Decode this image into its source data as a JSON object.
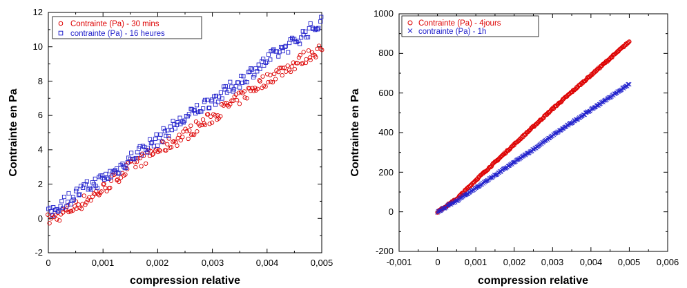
{
  "chart_data": [
    {
      "type": "scatter",
      "xlabel": "compression relative",
      "ylabel": "Contrainte en Pa",
      "xlim": [
        0,
        0.005
      ],
      "ylim": [
        -2,
        12
      ],
      "xticks": [
        "0",
        "0,001",
        "0,002",
        "0,003",
        "0,004",
        "0,005"
      ],
      "yticks": [
        "-2",
        "0",
        "2",
        "4",
        "6",
        "8",
        "10",
        "12"
      ],
      "legend_position": "top-left",
      "series": [
        {
          "name": "Contrainte (Pa) - 30 mins",
          "color": "#dd0000",
          "marker": "circle",
          "x": [
            0,
            0.00025,
            0.0005,
            0.00075,
            0.001,
            0.00125,
            0.0015,
            0.00175,
            0.002,
            0.00225,
            0.0025,
            0.00275,
            0.003,
            0.00325,
            0.0035,
            0.00375,
            0.004,
            0.00425,
            0.0045,
            0.00475,
            0.005
          ],
          "y": [
            -0.1,
            0.3,
            0.7,
            1.2,
            1.7,
            2.4,
            3.0,
            3.5,
            4.0,
            4.4,
            4.9,
            5.4,
            5.9,
            6.5,
            7.0,
            7.6,
            8.1,
            8.6,
            9.0,
            9.5,
            9.9
          ]
        },
        {
          "name": "contrainte  (Pa) - 16 heures",
          "color": "#2222cc",
          "marker": "square",
          "x": [
            0,
            0.00025,
            0.0005,
            0.00075,
            0.001,
            0.00125,
            0.0015,
            0.00175,
            0.002,
            0.00225,
            0.0025,
            0.00275,
            0.003,
            0.00325,
            0.0035,
            0.00375,
            0.004,
            0.00425,
            0.0045,
            0.00475,
            0.005
          ],
          "y": [
            0.2,
            0.9,
            1.4,
            1.9,
            2.3,
            2.8,
            3.5,
            4.1,
            4.6,
            5.3,
            5.8,
            6.4,
            6.9,
            7.4,
            8.0,
            8.6,
            9.2,
            9.8,
            10.3,
            10.9,
            11.4
          ]
        }
      ]
    },
    {
      "type": "scatter",
      "xlabel": "compression relative",
      "ylabel": "Contrainte en Pa",
      "xlim": [
        -0.001,
        0.006
      ],
      "ylim": [
        -200,
        1000
      ],
      "xticks": [
        "-0,001",
        "0",
        "0,001",
        "0,002",
        "0,003",
        "0,004",
        "0,005",
        "0,006"
      ],
      "yticks": [
        "-200",
        "0",
        "200",
        "400",
        "600",
        "800",
        "1000"
      ],
      "legend_position": "top-left",
      "series": [
        {
          "name": "Contrainte (Pa) - 4jours",
          "color": "#dd0000",
          "marker": "circle",
          "x": [
            0,
            0.0005,
            0.001,
            0.0015,
            0.002,
            0.0025,
            0.003,
            0.0035,
            0.004,
            0.0045,
            0.005
          ],
          "y": [
            0,
            65,
            160,
            250,
            340,
            430,
            520,
            605,
            690,
            775,
            860
          ]
        },
        {
          "name": "contrainte  (Pa) - 1h",
          "color": "#2222cc",
          "marker": "x",
          "x": [
            0,
            0.0005,
            0.001,
            0.0015,
            0.002,
            0.0025,
            0.003,
            0.0035,
            0.004,
            0.0045,
            0.005
          ],
          "y": [
            0,
            55,
            120,
            185,
            250,
            315,
            385,
            450,
            515,
            580,
            645
          ]
        }
      ]
    }
  ]
}
